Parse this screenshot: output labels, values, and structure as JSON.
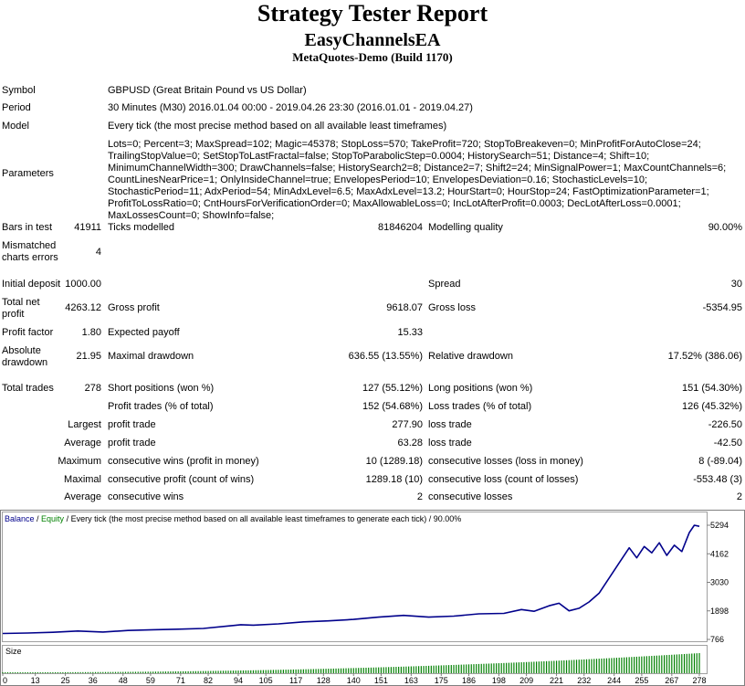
{
  "report": {
    "title": "Strategy Tester Report",
    "expert": "EasyChannelsEA",
    "server": "MetaQuotes-Demo (Build 1170)"
  },
  "summary": {
    "symbol_label": "Symbol",
    "symbol_value": "GBPUSD (Great Britain Pound vs US Dollar)",
    "period_label": "Period",
    "period_value": "30 Minutes (M30) 2016.01.04 00:00 - 2019.04.26 23:30 (2016.01.01 - 2019.04.27)",
    "model_label": "Model",
    "model_value": "Every tick (the most precise method based on all available least timeframes)",
    "parameters_label": "Parameters",
    "parameters_value": "Lots=0; Percent=3; MaxSpread=102; Magic=45378; StopLoss=570; TakeProfit=720; StopToBreakeven=0; MinProfitForAutoClose=24; TrailingStopValue=0; SetStopToLastFractal=false; StopToParabolicStep=0.0004; HistorySearch=51; Distance=4; Shift=10; MinimumChannelWidth=300; DrawChannels=false; HistorySearch2=8; Distance2=7; Shift2=24; MinSignalPower=1; MaxCountChannels=6; CountLinesNearPrice=1; OnlyInsideChannel=true; EnvelopesPeriod=10; EnvelopesDeviation=0.16; StochasticLevels=10; StochasticPeriod=11; AdxPeriod=54; MinAdxLevel=6.5; MaxAdxLevel=13.2; HourStart=0; HourStop=24; FastOptimizationParameter=1; ProfitToLossRatio=0; CntHoursForVerificationOrder=0; MaxAllowableLoss=0; IncLotAfterProfit=0.0003; DecLotAfterLoss=0.0001; MaxLossesCount=0; ShowInfo=false;"
  },
  "quality": {
    "bars_label": "Bars in test",
    "bars_value": "41911",
    "ticks_label": "Ticks modelled",
    "ticks_value": "81846204",
    "mq_label": "Modelling quality",
    "mq_value": "90.00%",
    "mismatch_label": "Mismatched charts errors",
    "mismatch_value": "4"
  },
  "stats": {
    "initial_deposit_label": "Initial deposit",
    "initial_deposit_value": "1000.00",
    "spread_label": "Spread",
    "spread_value": "30",
    "net_profit_label": "Total net profit",
    "net_profit_value": "4263.12",
    "gross_profit_label": "Gross profit",
    "gross_profit_value": "9618.07",
    "gross_loss_label": "Gross loss",
    "gross_loss_value": "-5354.95",
    "profit_factor_label": "Profit factor",
    "profit_factor_value": "1.80",
    "expected_payoff_label": "Expected payoff",
    "expected_payoff_value": "15.33",
    "abs_dd_label": "Absolute drawdown",
    "abs_dd_value": "21.95",
    "max_dd_label": "Maximal drawdown",
    "max_dd_value": "636.55 (13.55%)",
    "rel_dd_label": "Relative drawdown",
    "rel_dd_value": "17.52% (386.06)",
    "total_trades_label": "Total trades",
    "total_trades_value": "278",
    "short_label": "Short positions (won %)",
    "short_value": "127 (55.12%)",
    "long_label": "Long positions (won %)",
    "long_value": "151 (54.30%)",
    "profit_trades_label": "Profit trades (% of total)",
    "profit_trades_value": "152 (54.68%)",
    "loss_trades_label": "Loss trades (% of total)",
    "loss_trades_value": "126 (45.32%)",
    "largest_label": "Largest",
    "largest_profit_label": "profit trade",
    "largest_profit_value": "277.90",
    "largest_loss_label": "loss trade",
    "largest_loss_value": "-226.50",
    "average_label": "Average",
    "average_profit_label": "profit trade",
    "average_profit_value": "63.28",
    "average_loss_label": "loss trade",
    "average_loss_value": "-42.50",
    "maximum_label": "Maximum",
    "max_wins_label": "consecutive wins (profit in money)",
    "max_wins_value": "10 (1289.18)",
    "max_losses_label": "consecutive losses (loss in money)",
    "max_losses_value": "8 (-89.04)",
    "maximal_label": "Maximal",
    "maximal_profit_label": "consecutive profit (count of wins)",
    "maximal_profit_value": "1289.18 (10)",
    "maximal_loss_label": "consecutive loss (count of losses)",
    "maximal_loss_value": "-553.48 (3)",
    "average2_label": "Average",
    "avg_wins_label": "consecutive wins",
    "avg_wins_value": "2",
    "avg_losses_label": "consecutive losses",
    "avg_losses_value": "2"
  },
  "chart_data": {
    "type": "line",
    "legend": {
      "balance": "Balance",
      "sep": " / ",
      "equity": "Equity",
      "rest": " / Every tick (the most precise method based on all available least timeframes to generate each tick) / 90.00%"
    },
    "colors": {
      "balance": "#00008b",
      "equity": "#008000",
      "size": "#008000"
    },
    "y_ticks": [
      "5294",
      "4162",
      "3030",
      "1898",
      "766"
    ],
    "x_ticks": [
      "0",
      "13",
      "25",
      "36",
      "48",
      "59",
      "71",
      "82",
      "94",
      "105",
      "117",
      "128",
      "140",
      "151",
      "163",
      "175",
      "186",
      "198",
      "209",
      "221",
      "232",
      "244",
      "255",
      "267",
      "278"
    ],
    "xlim": [
      0,
      278
    ],
    "ylim": [
      766,
      5294
    ],
    "size_label": "Size",
    "series": [
      {
        "name": "Balance",
        "x": [
          0,
          10,
          20,
          30,
          40,
          50,
          60,
          70,
          80,
          90,
          95,
          100,
          110,
          120,
          130,
          140,
          150,
          160,
          170,
          180,
          190,
          200,
          207,
          212,
          218,
          222,
          226,
          230,
          234,
          238,
          242,
          246,
          250,
          253,
          256,
          259,
          262,
          265,
          268,
          271,
          274,
          276,
          278
        ],
        "y": [
          1000,
          1020,
          1050,
          1100,
          1060,
          1120,
          1150,
          1170,
          1200,
          1300,
          1350,
          1330,
          1380,
          1460,
          1500,
          1560,
          1650,
          1720,
          1650,
          1690,
          1780,
          1800,
          1950,
          1880,
          2100,
          2200,
          1900,
          2000,
          2250,
          2600,
          3200,
          3800,
          4400,
          4000,
          4450,
          4200,
          4600,
          4100,
          4500,
          4250,
          5000,
          5294,
          5250
        ]
      }
    ]
  }
}
